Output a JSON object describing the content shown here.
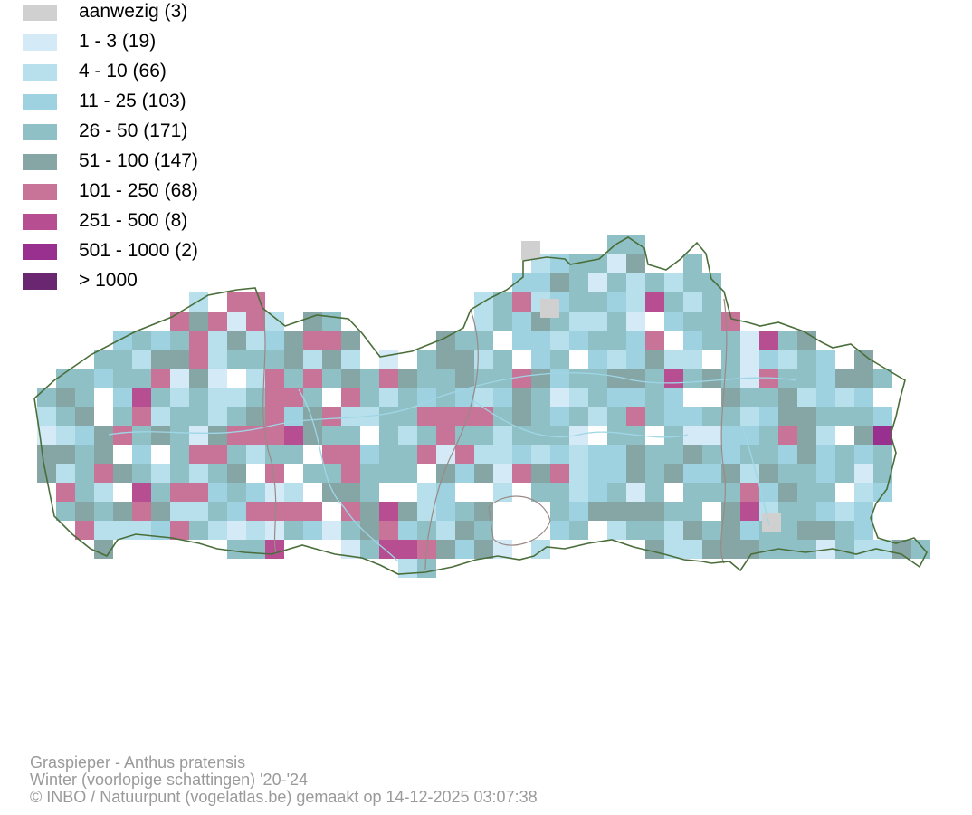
{
  "legend": {
    "items": [
      {
        "label": "aanwezig (3)",
        "color": "#d0d0d0"
      },
      {
        "label": "1 - 3 (19)",
        "color": "#d4eaf6"
      },
      {
        "label": "4 - 10 (66)",
        "color": "#b8e0ec"
      },
      {
        "label": "11 - 25 (103)",
        "color": "#9fd2e0"
      },
      {
        "label": "26 - 50 (171)",
        "color": "#8fc0c6"
      },
      {
        "label": "51 - 100 (147)",
        "color": "#86a6a6"
      },
      {
        "label": "101 - 250 (68)",
        "color": "#c87398"
      },
      {
        "label": "251 - 500 (8)",
        "color": "#b84e92"
      },
      {
        "label": "501 - 1000 (2)",
        "color": "#992f8f"
      },
      {
        "label": "> 1000",
        "color": "#6a2670"
      }
    ]
  },
  "footer": {
    "species": "Graspieper - Anthus pratensis",
    "season": "Winter (voorlopige schattingen) '20-'24",
    "credit": "© INBO / Natuurpunt (vogelatlas.be) gemaakt op 14-12-2025 03:07:38"
  },
  "map": {
    "border_color": "#4a6e3a",
    "river_color": "#9fd6e6",
    "inner_border_color": "#9a8a86"
  }
}
